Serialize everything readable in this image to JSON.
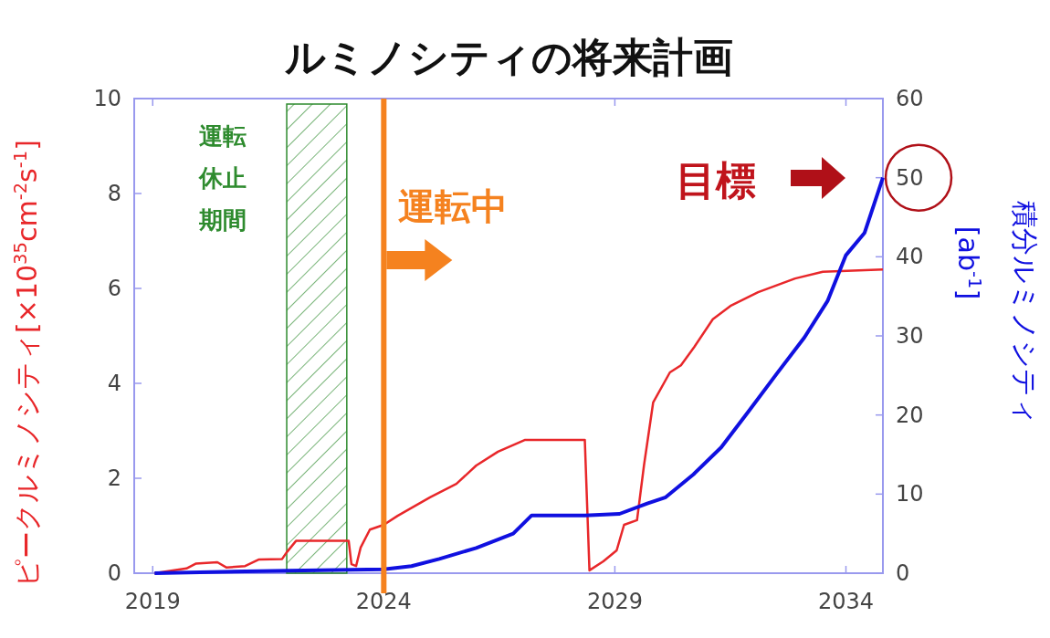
{
  "chart_data": {
    "type": "line",
    "title": "ルミノシティの将来計画",
    "ylabel": "ピークルミノシティ[×10$^{35}$cm$^{-2}$s$^{-1}$]",
    "y2label": "積分ルミノシティ [ab$^{-1}$]",
    "annotations": [
      "目標"
    ],
    "xlim": [
      2018.6,
      2034.8
    ],
    "xticks": [
      2019,
      2024,
      2029,
      2034
    ],
    "ylim": [
      0,
      10
    ],
    "yticks": [
      0,
      2,
      4,
      6,
      8,
      10
    ],
    "y2lim": [
      0,
      60
    ],
    "y2ticks": [
      0,
      10,
      20,
      30,
      40,
      50,
      60
    ],
    "grid": false,
    "line_style": "solid",
    "series": [
      {
        "color": "#e8272a",
        "x": [
          2019.04,
          2019.73,
          2019.93,
          2020.4,
          2020.6,
          2021.0,
          2021.3,
          2021.8,
          2021.9,
          2022.1,
          2023.24,
          2023.3,
          2023.4,
          2023.5,
          2023.7,
          2024.0,
          2024.3,
          2025.0,
          2025.57,
          2026.0,
          2026.47,
          2027.06,
          2028.35,
          2028.45,
          2028.75,
          2029.04,
          2029.2,
          2029.48,
          2029.63,
          2029.83,
          2030.19,
          2030.43,
          2030.72,
          2031.12,
          2031.5,
          2032.1,
          2032.9,
          2033.5,
          2034.8
        ],
        "values": [
          0,
          0.1,
          0.2,
          0.23,
          0.12,
          0.15,
          0.29,
          0.3,
          0.44,
          0.68,
          0.68,
          0.19,
          0.15,
          0.54,
          0.92,
          1.02,
          1.21,
          1.6,
          1.88,
          2.27,
          2.56,
          2.81,
          2.81,
          0.06,
          0.25,
          0.48,
          1.02,
          1.12,
          2.27,
          3.6,
          4.23,
          4.38,
          4.77,
          5.35,
          5.63,
          5.92,
          6.21,
          6.35,
          6.4
        ]
      },
      {
        "color": "#1010e0",
        "axis": "y2",
        "x": [
          2019.04,
          2021.6,
          2024.0,
          2024.6,
          2025.2,
          2026.0,
          2026.8,
          2027.2,
          2028.35,
          2029.1,
          2029.7,
          2030.1,
          2030.7,
          2031.3,
          2031.9,
          2032.5,
          2033.1,
          2033.6,
          2034.0,
          2034.4,
          2034.8
        ],
        "values": [
          0,
          0.3,
          0.5,
          0.9,
          1.8,
          3.2,
          5.0,
          7.3,
          7.3,
          7.5,
          8.8,
          9.6,
          12.5,
          15.9,
          20.5,
          25.2,
          29.8,
          34.4,
          40.2,
          43,
          50
        ]
      }
    ],
    "bands": [
      {
        "axis": "x",
        "from": 2021.9,
        "to": 2023.2,
        "label": "運転休止期間",
        "color": "#2e8b2e"
      }
    ],
    "ref_lines": [
      {
        "axis": "x",
        "value": 2024.0,
        "label": "運転中",
        "color": "#f5821f",
        "line_style": "solid"
      }
    ]
  }
}
